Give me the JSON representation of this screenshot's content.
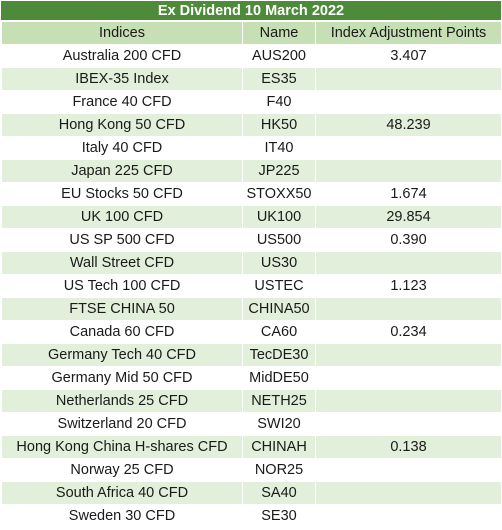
{
  "title": "Ex Dividend 10 March 2022",
  "headers": {
    "indices": "Indices",
    "name": "Name",
    "points": "Index Adjustment Points"
  },
  "rows": [
    {
      "index": "Australia 200 CFD",
      "name": "AUS200",
      "points": "3.407"
    },
    {
      "index": "IBEX-35 Index",
      "name": "ES35",
      "points": ""
    },
    {
      "index": "France 40 CFD",
      "name": "F40",
      "points": ""
    },
    {
      "index": "Hong Kong 50 CFD",
      "name": "HK50",
      "points": "48.239"
    },
    {
      "index": "Italy 40 CFD",
      "name": "IT40",
      "points": ""
    },
    {
      "index": "Japan 225 CFD",
      "name": "JP225",
      "points": ""
    },
    {
      "index": "EU Stocks 50 CFD",
      "name": "STOXX50",
      "points": "1.674"
    },
    {
      "index": "UK 100 CFD",
      "name": "UK100",
      "points": "29.854"
    },
    {
      "index": "US SP 500 CFD",
      "name": "US500",
      "points": "0.390"
    },
    {
      "index": "Wall Street CFD",
      "name": "US30",
      "points": ""
    },
    {
      "index": "US Tech 100 CFD",
      "name": "USTEC",
      "points": "1.123"
    },
    {
      "index": "FTSE CHINA 50",
      "name": "CHINA50",
      "points": ""
    },
    {
      "index": "Canada 60 CFD",
      "name": "CA60",
      "points": "0.234"
    },
    {
      "index": "Germany Tech 40 CFD",
      "name": "TecDE30",
      "points": ""
    },
    {
      "index": "Germany Mid 50 CFD",
      "name": "MidDE50",
      "points": ""
    },
    {
      "index": "Netherlands 25 CFD",
      "name": "NETH25",
      "points": ""
    },
    {
      "index": "Switzerland 20 CFD",
      "name": "SWI20",
      "points": ""
    },
    {
      "index": "Hong Kong China H-shares CFD",
      "name": "CHINAH",
      "points": "0.138"
    },
    {
      "index": "Norway 25 CFD",
      "name": "NOR25",
      "points": ""
    },
    {
      "index": "South Africa 40 CFD",
      "name": "SA40",
      "points": ""
    },
    {
      "index": "Sweden 30 CFD",
      "name": "SE30",
      "points": ""
    }
  ]
}
